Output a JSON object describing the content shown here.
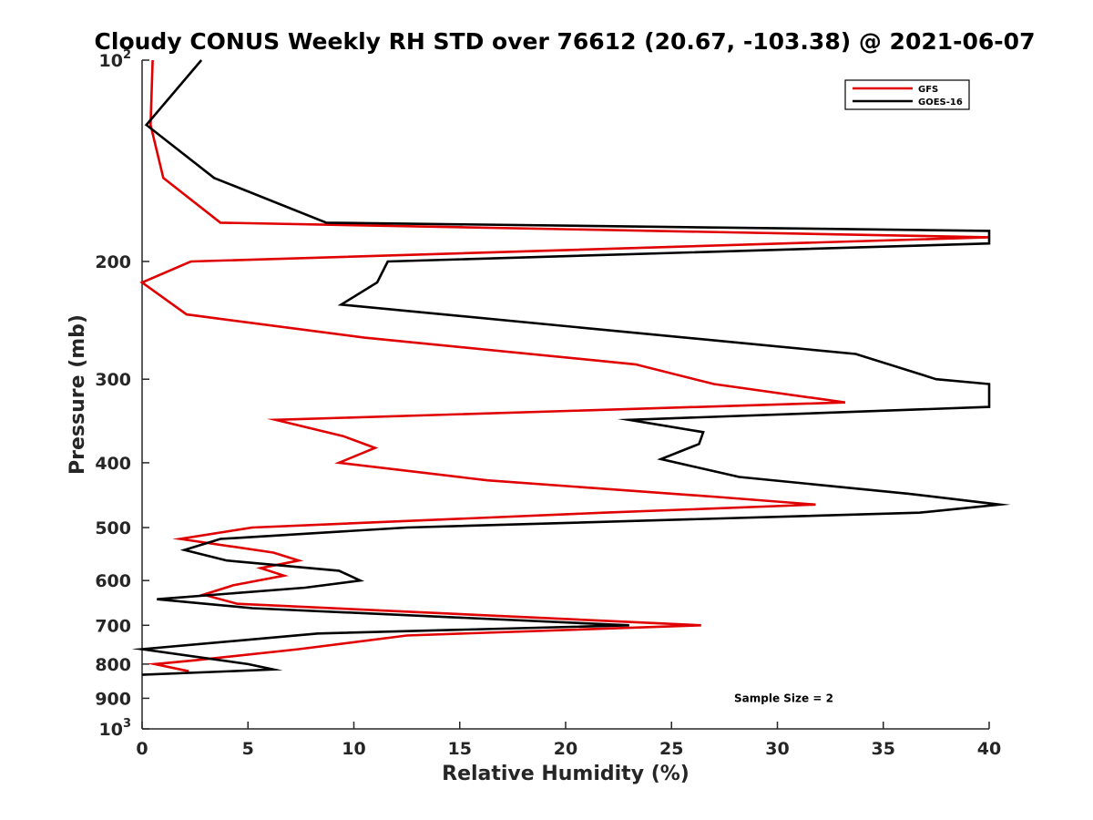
{
  "chart_data": {
    "type": "line",
    "title": "Cloudy CONUS Weekly RH STD over 76612 (20.67, -103.38) @ 2021-06-07",
    "xlabel": "Relative Humidity (%)",
    "ylabel": "Pressure (mb)",
    "xlim": [
      0,
      40
    ],
    "ylim": [
      100,
      1000
    ],
    "yscale": "log",
    "y_reversed": true,
    "grid": false,
    "legend_position": "top-right",
    "x_ticks": [
      {
        "value": 0,
        "label": "0"
      },
      {
        "value": 5,
        "label": "5"
      },
      {
        "value": 10,
        "label": "10"
      },
      {
        "value": 15,
        "label": "15"
      },
      {
        "value": 20,
        "label": "20"
      },
      {
        "value": 25,
        "label": "25"
      },
      {
        "value": 30,
        "label": "30"
      },
      {
        "value": 35,
        "label": "35"
      },
      {
        "value": 40,
        "label": "40"
      }
    ],
    "y_ticks": [
      {
        "value": 100,
        "base": "10",
        "exp": "2"
      },
      {
        "value": 200,
        "label": "200"
      },
      {
        "value": 300,
        "label": "300"
      },
      {
        "value": 400,
        "label": "400"
      },
      {
        "value": 500,
        "label": "500"
      },
      {
        "value": 600,
        "label": "600"
      },
      {
        "value": 700,
        "label": "700"
      },
      {
        "value": 800,
        "label": "800"
      },
      {
        "value": 900,
        "label": "900"
      },
      {
        "value": 1000,
        "base": "10",
        "exp": "3"
      }
    ],
    "series": [
      {
        "name": "GFS",
        "color": "#e00000",
        "points": [
          [
            0.5,
            100
          ],
          [
            0.4,
            125
          ],
          [
            1.0,
            150
          ],
          [
            3.7,
            175
          ],
          [
            40,
            184
          ],
          [
            2.3,
            200
          ],
          [
            0.0,
            215
          ],
          [
            2.1,
            240
          ],
          [
            10.5,
            260
          ],
          [
            23.3,
            285
          ],
          [
            27.0,
            305
          ],
          [
            33.2,
            325
          ],
          [
            6.3,
            345
          ],
          [
            9.5,
            365
          ],
          [
            11.0,
            380
          ],
          [
            9.3,
            400
          ],
          [
            16.3,
            425
          ],
          [
            27.2,
            450
          ],
          [
            31.8,
            462
          ],
          [
            21.8,
            475
          ],
          [
            5.2,
            500
          ],
          [
            1.8,
            520
          ],
          [
            6.2,
            545
          ],
          [
            7.4,
            560
          ],
          [
            5.6,
            575
          ],
          [
            6.7,
            590
          ],
          [
            4.3,
            610
          ],
          [
            2.9,
            630
          ],
          [
            4.5,
            650
          ],
          [
            26.4,
            700
          ],
          [
            12.5,
            725
          ],
          [
            7.4,
            760
          ],
          [
            2.4,
            790
          ],
          [
            0.6,
            800
          ],
          [
            2.2,
            820
          ]
        ]
      },
      {
        "name": "GOES-16",
        "color": "#000000",
        "points": [
          [
            2.8,
            100
          ],
          [
            0.2,
            125
          ],
          [
            3.4,
            150
          ],
          [
            8.7,
            175
          ],
          [
            40,
            180
          ],
          [
            40,
            188
          ],
          [
            11.6,
            200
          ],
          [
            11.1,
            215
          ],
          [
            9.4,
            232
          ],
          [
            33.7,
            275
          ],
          [
            37.5,
            300
          ],
          [
            40,
            305
          ],
          [
            40,
            330
          ],
          [
            23.0,
            345
          ],
          [
            26.5,
            360
          ],
          [
            26.3,
            375
          ],
          [
            24.5,
            395
          ],
          [
            28.2,
            420
          ],
          [
            36.2,
            445
          ],
          [
            40.5,
            462
          ],
          [
            36.7,
            475
          ],
          [
            12.5,
            500
          ],
          [
            3.7,
            520
          ],
          [
            2.0,
            540
          ],
          [
            4.0,
            560
          ],
          [
            9.3,
            580
          ],
          [
            10.3,
            600
          ],
          [
            7.7,
            615
          ],
          [
            0.7,
            640
          ],
          [
            5.2,
            660
          ],
          [
            23.0,
            700
          ],
          [
            8.3,
            720
          ],
          [
            0.0,
            760
          ],
          [
            5.0,
            800
          ],
          [
            6.2,
            815
          ],
          [
            0.0,
            830
          ]
        ]
      }
    ],
    "annotations": [
      {
        "text": "Sample Size = 2",
        "at_rh": 30.3,
        "at_p": 900
      }
    ]
  }
}
